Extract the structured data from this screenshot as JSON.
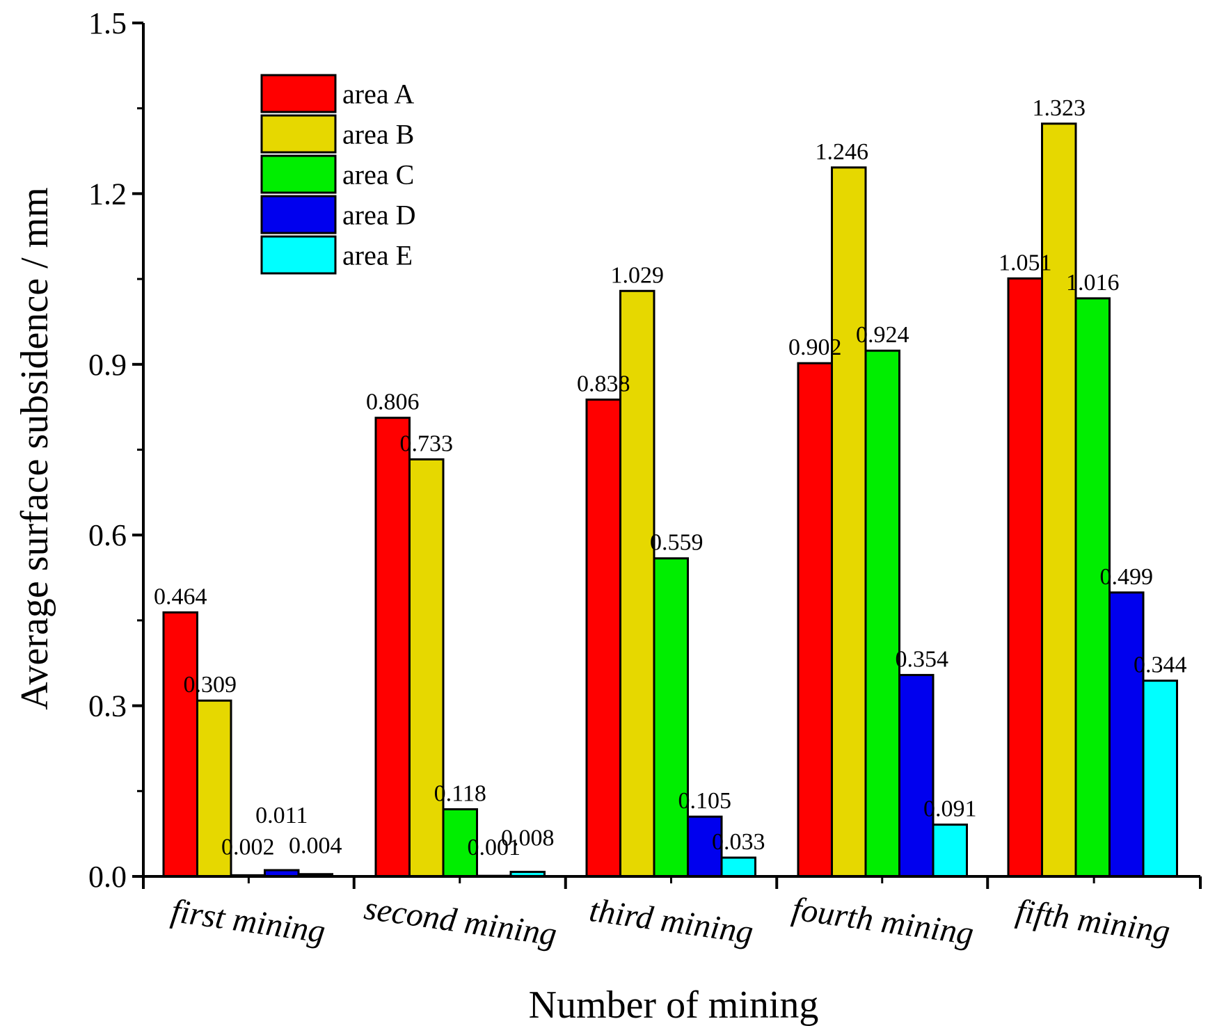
{
  "chart_data": {
    "type": "bar",
    "title": "",
    "xlabel": "Number of mining",
    "ylabel": "Average surface subsidence / mm",
    "ylim": [
      0,
      1.5
    ],
    "yticks": [
      "0.0",
      "0.3",
      "0.6",
      "0.9",
      "1.2",
      "1.5"
    ],
    "categories": [
      "first mining",
      "second mining",
      "third mining",
      "fourth mining",
      "fifth mining"
    ],
    "series": [
      {
        "name": "area A",
        "color": "#ff0000",
        "values": [
          0.464,
          0.806,
          0.838,
          0.902,
          1.051
        ],
        "labels": [
          "0.464",
          "0.806",
          "0.838",
          "0.902",
          "1.051"
        ]
      },
      {
        "name": "area B",
        "color": "#e6d800",
        "values": [
          0.309,
          0.733,
          1.029,
          1.246,
          1.323
        ],
        "labels": [
          "0.309",
          "0.733",
          "1.029",
          "1.246",
          "1.323"
        ]
      },
      {
        "name": "area C",
        "color": "#00ee00",
        "values": [
          0.002,
          0.118,
          0.559,
          0.924,
          1.016
        ],
        "labels": [
          "0.002",
          "0.118",
          "0.559",
          "0.924",
          "1.016"
        ]
      },
      {
        "name": "area D",
        "color": "#0000ee",
        "values": [
          0.011,
          0.001,
          0.105,
          0.354,
          0.499
        ],
        "labels": [
          "0.011",
          "0.001",
          "0.105",
          "0.354",
          "0.499"
        ]
      },
      {
        "name": "area E",
        "color": "#00ffff",
        "values": [
          0.004,
          0.008,
          0.033,
          0.091,
          0.344
        ],
        "labels": [
          "0.004",
          "0.008",
          "0.033",
          "0.091",
          "0.344"
        ]
      }
    ],
    "legend_position": "top-left"
  }
}
